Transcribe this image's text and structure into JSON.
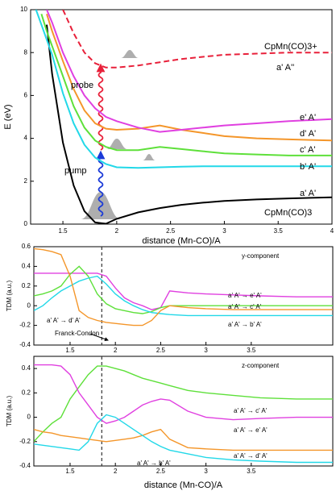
{
  "chart_data": [
    {
      "type": "line",
      "xlabel": "distance (Mn-CO)/A",
      "ylabel": "E (eV)",
      "xlim": [
        1.2,
        4.0
      ],
      "xticks": [
        1.5,
        2,
        2.5,
        3,
        3.5,
        4
      ],
      "ylim": [
        0,
        10
      ],
      "yticks": [
        0,
        2,
        4,
        6,
        8,
        10
      ],
      "x": [
        1.2,
        1.25,
        1.3,
        1.35,
        1.4,
        1.5,
        1.6,
        1.7,
        1.8,
        1.9,
        2.0,
        2.2,
        2.4,
        2.6,
        2.8,
        3.0,
        3.3,
        3.6,
        4.0
      ],
      "series": [
        {
          "name": "a' A'",
          "color": "#000000",
          "values": [
            null,
            null,
            null,
            9.3,
            7.0,
            3.8,
            1.8,
            0.6,
            0.08,
            0.02,
            0.25,
            0.55,
            0.75,
            0.9,
            1.0,
            1.08,
            1.15,
            1.2,
            1.25
          ]
        },
        {
          "name": "b' A'",
          "color": "#22d8e8",
          "values": [
            null,
            10,
            9.3,
            8.6,
            7.9,
            6.1,
            4.7,
            3.7,
            3.1,
            2.8,
            2.65,
            2.62,
            2.65,
            2.68,
            2.7,
            2.7,
            2.7,
            2.7,
            2.7
          ]
        },
        {
          "name": "c' A'",
          "color": "#5ee03a",
          "values": [
            null,
            null,
            9.8,
            9.0,
            8.3,
            6.9,
            5.5,
            4.5,
            3.9,
            3.6,
            3.45,
            3.45,
            3.6,
            3.5,
            3.4,
            3.3,
            3.25,
            3.2,
            3.2
          ]
        },
        {
          "name": "d' A'",
          "color": "#f4962a",
          "values": [
            null,
            null,
            null,
            9.8,
            9.0,
            7.6,
            6.3,
            5.3,
            4.7,
            4.45,
            4.4,
            4.45,
            4.6,
            4.4,
            4.25,
            4.1,
            4.0,
            3.95,
            3.9
          ]
        },
        {
          "name": "e' A'",
          "color": "#e040e0",
          "values": [
            null,
            null,
            null,
            10,
            9.4,
            8.0,
            6.9,
            6.0,
            5.4,
            5.0,
            4.8,
            4.5,
            4.3,
            4.4,
            4.5,
            4.6,
            4.7,
            4.8,
            4.9
          ]
        },
        {
          "name": "a' A''",
          "color": "#e8203a",
          "dash": true,
          "values": [
            null,
            null,
            null,
            null,
            null,
            10,
            8.9,
            8.0,
            7.5,
            7.3,
            7.3,
            7.4,
            7.55,
            7.7,
            7.8,
            7.9,
            7.95,
            8.0,
            8.0
          ]
        }
      ],
      "annotations": [
        "probe",
        "pump",
        "CpMn(CO)3+",
        "CpMn(CO)3"
      ]
    },
    {
      "type": "line",
      "ylabel": "TDM (a.u.)",
      "xlim": [
        1.1,
        4.4
      ],
      "xticks": [
        1.5,
        2,
        2.5,
        3,
        3.5
      ],
      "ylim": [
        -0.4,
        0.6
      ],
      "yticks": [
        -0.4,
        -0.2,
        0,
        0.2,
        0.4,
        0.6
      ],
      "vlines": [
        1.85
      ],
      "x": [
        1.1,
        1.2,
        1.3,
        1.4,
        1.5,
        1.6,
        1.7,
        1.8,
        1.9,
        2.0,
        2.1,
        2.2,
        2.3,
        2.4,
        2.5,
        2.6,
        2.8,
        3.0,
        3.3,
        3.6,
        4.0,
        4.4
      ],
      "series": [
        {
          "name": "a' A' → e' A'",
          "color": "#e040e0",
          "values": [
            0.33,
            0.33,
            0.33,
            0.33,
            0.33,
            0.33,
            0.33,
            0.33,
            0.3,
            0.18,
            0.08,
            0.03,
            0.0,
            -0.04,
            -0.02,
            0.15,
            0.13,
            0.12,
            0.11,
            0.1,
            0.09,
            0.09
          ]
        },
        {
          "name": "a' A' → c' A'",
          "color": "#5ee03a",
          "values": [
            0.1,
            0.12,
            0.15,
            0.2,
            0.32,
            0.4,
            0.3,
            0.12,
            0.02,
            -0.03,
            -0.05,
            -0.07,
            -0.08,
            -0.06,
            -0.02,
            0.0,
            0.0,
            0.0,
            0.0,
            0.0,
            0.0,
            0.0
          ]
        },
        {
          "name": "a' A' → b' A'",
          "color": "#22d8e8",
          "values": [
            -0.05,
            0.0,
            0.08,
            0.15,
            0.2,
            0.25,
            0.28,
            0.3,
            0.22,
            0.12,
            0.05,
            0.0,
            -0.04,
            -0.07,
            -0.08,
            -0.09,
            -0.1,
            -0.1,
            -0.1,
            -0.1,
            -0.1,
            -0.1
          ]
        },
        {
          "name": "a' A' → d' A'",
          "color": "#f4962a",
          "values": [
            0.58,
            0.57,
            0.55,
            0.52,
            0.3,
            -0.05,
            -0.12,
            -0.15,
            -0.17,
            -0.18,
            -0.19,
            -0.2,
            -0.2,
            -0.15,
            -0.05,
            0.0,
            -0.02,
            -0.03,
            -0.04,
            -0.04,
            -0.04,
            -0.04
          ]
        }
      ],
      "annotations": [
        "y-component",
        "Franck-Condon"
      ]
    },
    {
      "type": "line",
      "xlabel": "distance (Mn-CO)/A",
      "ylabel": "TDM (a.u.)",
      "xlim": [
        1.1,
        4.4
      ],
      "xticks": [
        1.5,
        2,
        2.5,
        3,
        3.5
      ],
      "ylim": [
        -0.4,
        0.5
      ],
      "yticks": [
        -0.4,
        -0.2,
        0,
        0.2,
        0.4
      ],
      "vlines": [
        1.85
      ],
      "x": [
        1.1,
        1.2,
        1.3,
        1.4,
        1.5,
        1.6,
        1.7,
        1.8,
        1.9,
        2.0,
        2.1,
        2.2,
        2.3,
        2.4,
        2.5,
        2.6,
        2.8,
        3.0,
        3.3,
        3.6,
        4.0,
        4.4
      ],
      "series": [
        {
          "name": "a' A' → c' A'",
          "color": "#5ee03a",
          "values": [
            -0.2,
            -0.12,
            -0.05,
            0.0,
            0.15,
            0.25,
            0.35,
            0.42,
            0.42,
            0.4,
            0.38,
            0.35,
            0.32,
            0.3,
            0.28,
            0.26,
            0.22,
            0.2,
            0.18,
            0.16,
            0.15,
            0.15
          ]
        },
        {
          "name": "a' A' → e' A'",
          "color": "#e040e0",
          "values": [
            0.43,
            0.43,
            0.43,
            0.42,
            0.35,
            0.2,
            0.1,
            0.0,
            -0.05,
            -0.03,
            0.0,
            0.05,
            0.1,
            0.13,
            0.15,
            0.14,
            0.05,
            0.0,
            -0.02,
            -0.01,
            0.0,
            0.0
          ]
        },
        {
          "name": "a' A' → d' A'",
          "color": "#f4962a",
          "values": [
            -0.1,
            -0.12,
            -0.13,
            -0.15,
            -0.16,
            -0.17,
            -0.18,
            -0.19,
            -0.2,
            -0.19,
            -0.18,
            -0.17,
            -0.15,
            -0.12,
            -0.1,
            -0.18,
            -0.25,
            -0.26,
            -0.27,
            -0.27,
            -0.27,
            -0.27
          ]
        },
        {
          "name": "a' A' → b' A'",
          "color": "#22d8e8",
          "values": [
            -0.22,
            -0.23,
            -0.24,
            -0.25,
            -0.26,
            -0.27,
            -0.2,
            -0.05,
            0.02,
            0.0,
            -0.05,
            -0.1,
            -0.15,
            -0.2,
            -0.24,
            -0.27,
            -0.3,
            -0.33,
            -0.35,
            -0.36,
            -0.37,
            -0.37
          ]
        }
      ],
      "annotations": [
        "z-component"
      ]
    }
  ]
}
